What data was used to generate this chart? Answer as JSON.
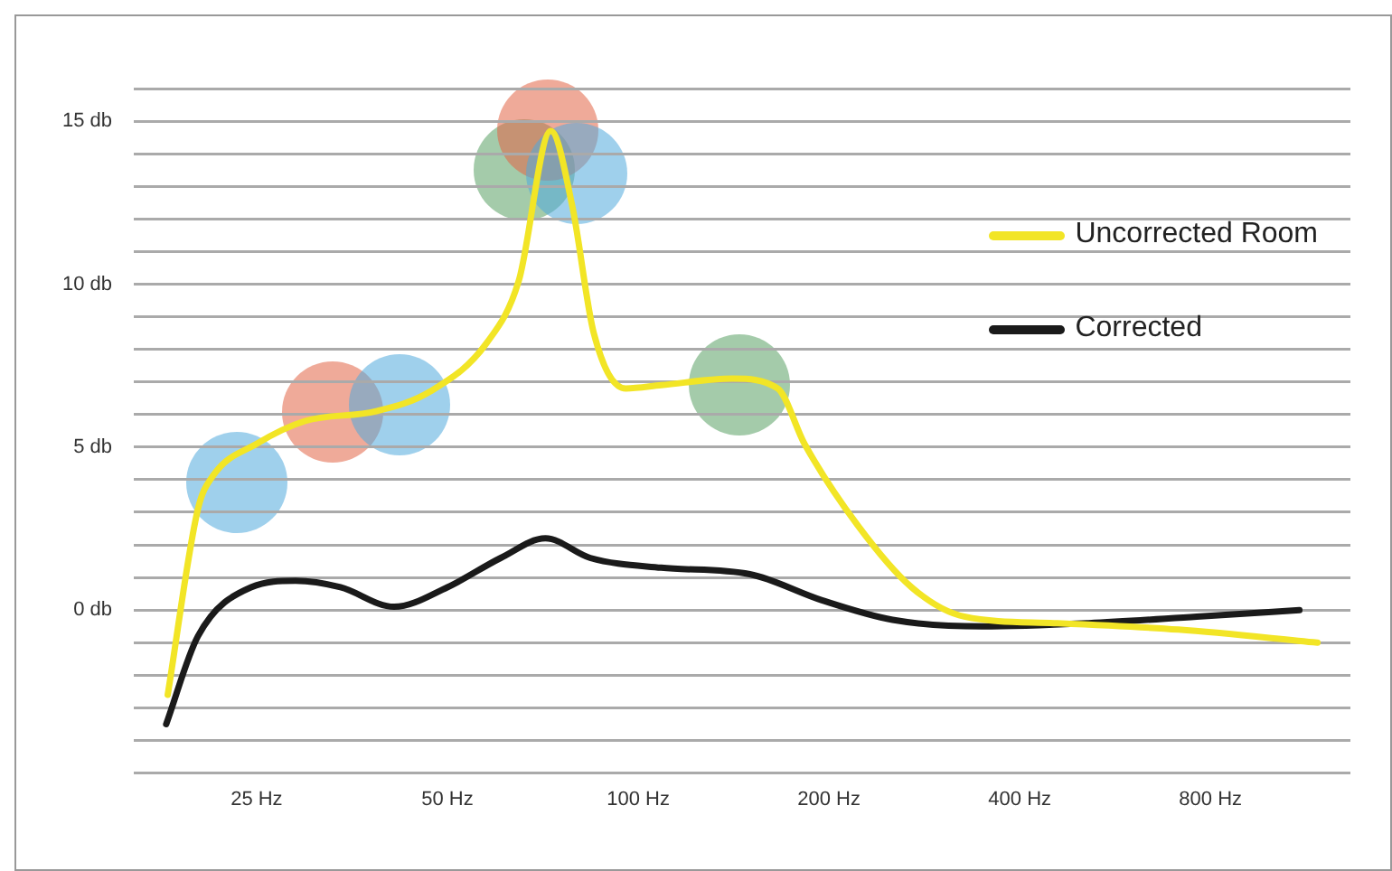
{
  "chart_data": {
    "type": "line",
    "log": "x",
    "grid": "y",
    "legend": "right",
    "marker": "none",
    "line_style": "solid",
    "xlim": [
      16,
      1330
    ],
    "xticks": [
      {
        "value": 25,
        "label": "25 Hz"
      },
      {
        "value": 50,
        "label": "50 Hz"
      },
      {
        "value": 100,
        "label": "100 Hz"
      },
      {
        "value": 200,
        "label": "200 Hz"
      },
      {
        "value": 400,
        "label": "400 Hz"
      },
      {
        "value": 800,
        "label": "800 Hz"
      }
    ],
    "ylim": [
      -5,
      16
    ],
    "yticks": [
      {
        "value": -5,
        "label": null
      },
      {
        "value": -4,
        "label": null
      },
      {
        "value": -3,
        "label": null
      },
      {
        "value": -2,
        "label": null
      },
      {
        "value": -1,
        "label": null
      },
      {
        "value": 0,
        "label": "0 db"
      },
      {
        "value": 1,
        "label": null
      },
      {
        "value": 2,
        "label": null
      },
      {
        "value": 3,
        "label": null
      },
      {
        "value": 4,
        "label": null
      },
      {
        "value": 5,
        "label": "5 db"
      },
      {
        "value": 6,
        "label": null
      },
      {
        "value": 7,
        "label": null
      },
      {
        "value": 8,
        "label": null
      },
      {
        "value": 9,
        "label": null
      },
      {
        "value": 10,
        "label": "10 db"
      },
      {
        "value": 11,
        "label": null
      },
      {
        "value": 12,
        "label": null
      },
      {
        "value": 13,
        "label": null
      },
      {
        "value": 14,
        "label": null
      },
      {
        "value": 15,
        "label": "15 db"
      },
      {
        "value": 16,
        "label": null
      }
    ],
    "series": [
      {
        "name": "Uncorrected Room",
        "color": "#f2e526",
        "x": [
          18.1,
          20.2,
          21.3,
          25,
          29.8,
          38.6,
          46.9,
          57.7,
          64.8,
          72.8,
          78.7,
          85.1,
          95.6,
          108.7,
          141,
          166,
          183,
          222,
          270,
          327,
          453,
          712,
          1180
        ],
        "values": [
          -2.6,
          3.1,
          4.1,
          5.1,
          5.8,
          6.1,
          6.7,
          8.2,
          10.1,
          14.7,
          12.4,
          8.5,
          6.8,
          6.9,
          7.1,
          6.8,
          5.1,
          2.6,
          0.7,
          -0.2,
          -0.4,
          -0.6,
          -1.0
        ]
      },
      {
        "name": "Corrected",
        "color": "#1a1a1a",
        "x": [
          18,
          20.2,
          24.5,
          28.8,
          33.9,
          41.2,
          50,
          60.7,
          71.4,
          84,
          108.7,
          150,
          195,
          252,
          349,
          514,
          761,
          1105
        ],
        "values": [
          -3.5,
          -0.8,
          0.7,
          0.9,
          0.7,
          0.1,
          0.7,
          1.6,
          2.2,
          1.6,
          1.3,
          1.1,
          0.3,
          -0.3,
          -0.5,
          -0.4,
          -0.2,
          0.0
        ]
      }
    ]
  }
}
